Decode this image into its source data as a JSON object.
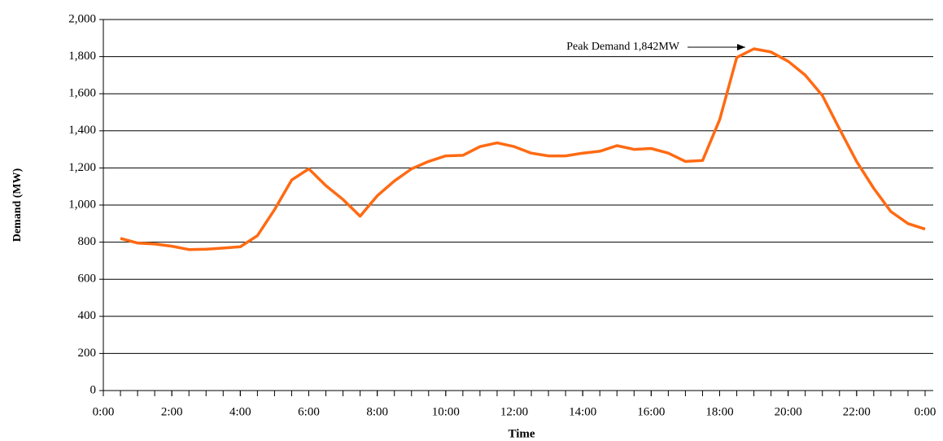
{
  "chart_data": {
    "type": "line",
    "y_label": "Demand (MW)",
    "x_label": "Time",
    "annotation": "Peak Demand 1,842MW",
    "x": [
      0.5,
      1,
      1.5,
      2,
      2.5,
      3,
      3.5,
      4,
      4.5,
      5,
      5.5,
      6,
      6.5,
      7,
      7.5,
      8,
      8.5,
      9,
      9.5,
      10,
      10.5,
      11,
      11.5,
      12,
      12.5,
      13,
      13.5,
      14,
      14.5,
      15,
      15.5,
      16,
      16.5,
      17,
      17.5,
      18,
      18.5,
      19,
      19.5,
      20,
      20.5,
      21,
      21.5,
      22,
      22.5,
      23,
      23.5,
      24
    ],
    "series": [
      {
        "name": "Demand",
        "color": "#ff6a13",
        "values": [
          820,
          795,
          790,
          778,
          760,
          762,
          768,
          775,
          835,
          975,
          1135,
          1195,
          1105,
          1030,
          940,
          1050,
          1130,
          1195,
          1235,
          1265,
          1268,
          1315,
          1335,
          1315,
          1280,
          1265,
          1265,
          1280,
          1290,
          1320,
          1300,
          1305,
          1280,
          1235,
          1240,
          1460,
          1795,
          1842,
          1825,
          1775,
          1700,
          1590,
          1410,
          1235,
          1090,
          965,
          900,
          870
        ]
      }
    ],
    "xlim": [
      0,
      24
    ],
    "xticks": [
      {
        "value": 0,
        "label": "0:00"
      },
      {
        "value": 2,
        "label": "2:00"
      },
      {
        "value": 4,
        "label": "4:00"
      },
      {
        "value": 6,
        "label": "6:00"
      },
      {
        "value": 8,
        "label": "8:00"
      },
      {
        "value": 10,
        "label": "10:00"
      },
      {
        "value": 12,
        "label": "12:00"
      },
      {
        "value": 14,
        "label": "14:00"
      },
      {
        "value": 16,
        "label": "16:00"
      },
      {
        "value": 18,
        "label": "18:00"
      },
      {
        "value": 20,
        "label": "20:00"
      },
      {
        "value": 22,
        "label": "22:00"
      },
      {
        "value": 24,
        "label": "0:00"
      }
    ],
    "ylim": [
      0,
      2000
    ],
    "yticks": [
      0,
      200,
      400,
      600,
      800,
      {
        "value": 1000,
        "label": "1,000"
      },
      {
        "value": 1200,
        "label": "1,200"
      },
      {
        "value": 1400,
        "label": "1,400"
      },
      {
        "value": 1600,
        "label": "1,600"
      },
      {
        "value": 1800,
        "label": "1,800"
      },
      {
        "value": 2000,
        "label": "2,000"
      }
    ],
    "grid": true
  }
}
